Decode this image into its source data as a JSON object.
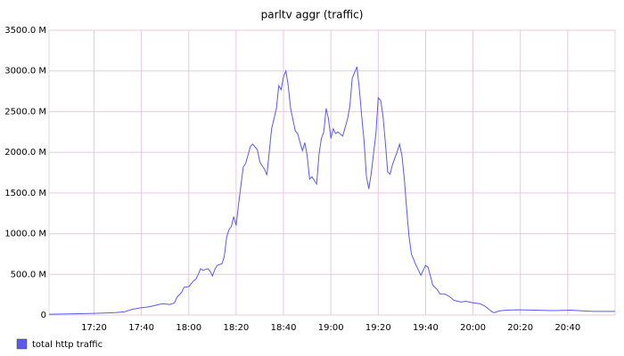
{
  "chart_data": {
    "type": "line",
    "title": "parltv aggr (traffic)",
    "x": [
      "17:01",
      "17:18",
      "17:29",
      "17:33",
      "17:36",
      "17:40",
      "17:43",
      "17:46",
      "17:49",
      "17:52",
      "17:54",
      "17:55",
      "17:57",
      "17:58",
      "18:00",
      "18:02",
      "18:03",
      "18:04",
      "18:05",
      "18:06",
      "18:08",
      "18:09",
      "18:10",
      "18:11",
      "18:12",
      "18:14",
      "18:15",
      "18:16",
      "18:17",
      "18:18",
      "18:19",
      "18:20",
      "18:21",
      "18:23",
      "18:24",
      "18:26",
      "18:27",
      "18:29",
      "18:30",
      "18:32",
      "18:33",
      "18:34",
      "18:35",
      "18:37",
      "18:38",
      "18:39",
      "18:40",
      "18:41",
      "18:42",
      "18:43",
      "18:45",
      "18:46",
      "18:47",
      "18:48",
      "18:49",
      "18:50",
      "18:51",
      "18:52",
      "18:54",
      "18:55",
      "18:56",
      "18:57",
      "18:58",
      "18:59",
      "19:00",
      "19:01",
      "19:02",
      "19:03",
      "19:05",
      "19:07",
      "19:08",
      "19:09",
      "19:11",
      "19:12",
      "19:13",
      "19:14",
      "19:15",
      "19:16",
      "19:17",
      "19:19",
      "19:20",
      "19:21",
      "19:22",
      "19:23",
      "19:24",
      "19:25",
      "19:26",
      "19:28",
      "19:29",
      "19:30",
      "19:31",
      "19:32",
      "19:33",
      "19:34",
      "19:36",
      "19:37",
      "19:38",
      "19:40",
      "19:41",
      "19:42",
      "19:43",
      "19:45",
      "19:46",
      "19:48",
      "19:50",
      "19:52",
      "19:55",
      "19:57",
      "20:00",
      "20:03",
      "20:05",
      "20:08",
      "20:09",
      "20:11",
      "20:14",
      "20:19",
      "20:26",
      "20:34",
      "20:41",
      "20:47",
      "20:51",
      "21:00"
    ],
    "series": [
      {
        "name": "total http traffic",
        "color": "#5a5af0",
        "values": [
          10,
          20,
          30,
          40,
          70,
          90,
          100,
          120,
          140,
          130,
          150,
          220,
          280,
          340,
          350,
          420,
          440,
          500,
          570,
          550,
          570,
          540,
          480,
          560,
          610,
          630,
          720,
          960,
          1050,
          1090,
          1210,
          1100,
          1360,
          1820,
          1860,
          2070,
          2100,
          2030,
          1880,
          1790,
          1720,
          2010,
          2290,
          2540,
          2820,
          2770,
          2930,
          3000,
          2820,
          2540,
          2260,
          2230,
          2120,
          2020,
          2120,
          1960,
          1670,
          1700,
          1610,
          1980,
          2170,
          2250,
          2540,
          2410,
          2170,
          2290,
          2230,
          2250,
          2200,
          2410,
          2560,
          2910,
          3050,
          2780,
          2450,
          2140,
          1710,
          1550,
          1730,
          2230,
          2670,
          2640,
          2450,
          2120,
          1760,
          1730,
          1850,
          2010,
          2100,
          1960,
          1680,
          1300,
          970,
          750,
          610,
          550,
          490,
          610,
          590,
          480,
          370,
          310,
          260,
          260,
          230,
          180,
          160,
          170,
          150,
          140,
          110,
          40,
          30,
          50,
          60,
          65,
          60,
          55,
          60,
          50,
          45,
          45
        ]
      }
    ],
    "xlim": [
      "17:01",
      "21:00"
    ],
    "xticks": [
      "17:20",
      "17:40",
      "18:00",
      "18:20",
      "18:40",
      "19:00",
      "19:20",
      "19:40",
      "20:00",
      "20:20",
      "20:40"
    ],
    "ylim": [
      0,
      3500
    ],
    "yticks": [
      {
        "value": 0,
        "label": "0"
      },
      {
        "value": 500,
        "label": "500.0 M"
      },
      {
        "value": 1000,
        "label": "1000.0 M"
      },
      {
        "value": 1500,
        "label": "1500.0 M"
      },
      {
        "value": 2000,
        "label": "2000.0 M"
      },
      {
        "value": 2500,
        "label": "2500.0 M"
      },
      {
        "value": 3000,
        "label": "3000.0 M"
      },
      {
        "value": 3500,
        "label": "3500.0 M"
      }
    ],
    "grid": true,
    "legend": "bottom-left"
  }
}
